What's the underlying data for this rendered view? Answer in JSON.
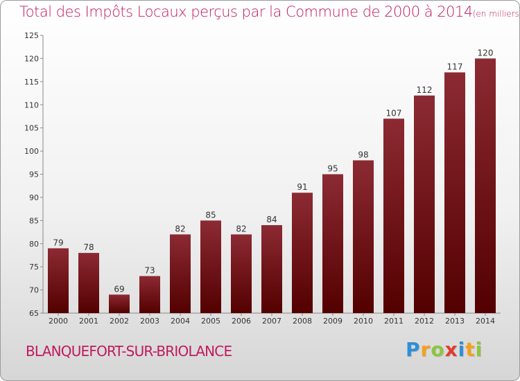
{
  "chart_data": {
    "type": "bar",
    "title": "Total des Impôts Locaux perçus par la Commune de 2000 à 2014",
    "subtitle": "(en milliers d'€)",
    "categories": [
      "2000",
      "2001",
      "2002",
      "2003",
      "2004",
      "2005",
      "2006",
      "2007",
      "2008",
      "2009",
      "2010",
      "2011",
      "2012",
      "2013",
      "2014"
    ],
    "values": [
      79,
      78,
      69,
      73,
      82,
      85,
      82,
      84,
      91,
      95,
      98,
      107,
      112,
      117,
      120
    ],
    "xlabel": "",
    "ylabel": "",
    "ylim": [
      65,
      125
    ],
    "yticks": [
      65,
      70,
      75,
      80,
      85,
      90,
      95,
      100,
      105,
      110,
      115,
      120,
      125
    ],
    "grid": false,
    "bar_color": "#7a1a22"
  },
  "commune": "BLANQUEFORT-SUR-BRIOLANCE",
  "logo": {
    "letters": [
      "P",
      "r",
      "o",
      "x",
      "i",
      "t",
      "i"
    ],
    "colors": [
      "#2f8fd8",
      "#f4a11d",
      "#8cc63f",
      "#e53a2f",
      "#2f8fd8",
      "#f4a11d",
      "#8cc63f"
    ]
  }
}
